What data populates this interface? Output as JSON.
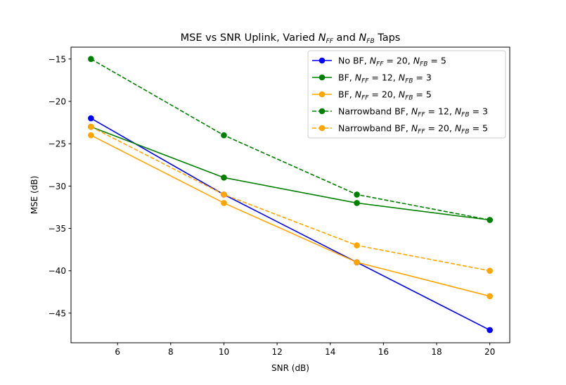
{
  "chart_data": {
    "type": "line",
    "title": "MSE vs SNR Uplink, Varied N_FF and N_FB Taps",
    "title_parts": {
      "pre": "MSE vs SNR Uplink, Varied ",
      "mid": " and ",
      "post": " Taps"
    },
    "xlabel": "SNR (dB)",
    "ylabel": "MSE (dB)",
    "xlim": [
      4.25,
      20.75
    ],
    "ylim": [
      -48.5,
      -13.6
    ],
    "xticks": [
      6,
      8,
      10,
      12,
      14,
      16,
      18,
      20
    ],
    "yticks": [
      -15,
      -20,
      -25,
      -30,
      -35,
      -40,
      -45
    ],
    "grid": false,
    "legend_position": "top-right",
    "x": [
      5,
      10,
      15,
      20
    ],
    "series": [
      {
        "name": "No BF, N_FF = 20, N_FB = 5",
        "label": {
          "pre": "No BF, ",
          "nff": "20",
          "nfb": "5"
        },
        "color": "#0000ff",
        "dash": "solid",
        "values": [
          -22,
          -31,
          -39,
          -47
        ]
      },
      {
        "name": "BF, N_FF = 12, N_FB = 3",
        "label": {
          "pre": "BF, ",
          "nff": "12",
          "nfb": "3"
        },
        "color": "#008000",
        "dash": "solid",
        "values": [
          -23,
          -29,
          -32,
          -34
        ]
      },
      {
        "name": "BF, N_FF = 20, N_FB = 5",
        "label": {
          "pre": "BF, ",
          "nff": "20",
          "nfb": "5"
        },
        "color": "#ffa500",
        "dash": "solid",
        "values": [
          -24,
          -32,
          -39,
          -43
        ]
      },
      {
        "name": "Narrowband BF, N_FF = 12, N_FB = 3",
        "label": {
          "pre": "Narrowband BF, ",
          "nff": "12",
          "nfb": "3"
        },
        "color": "#008000",
        "dash": "dashed",
        "values": [
          -15,
          -24,
          -31,
          -34
        ]
      },
      {
        "name": "Narrowband BF, N_FF = 20, N_FB = 5",
        "label": {
          "pre": "Narrowband BF, ",
          "nff": "20",
          "nfb": "5"
        },
        "color": "#ffa500",
        "dash": "dashed",
        "values": [
          -23,
          -31,
          -37,
          -40
        ]
      }
    ]
  }
}
